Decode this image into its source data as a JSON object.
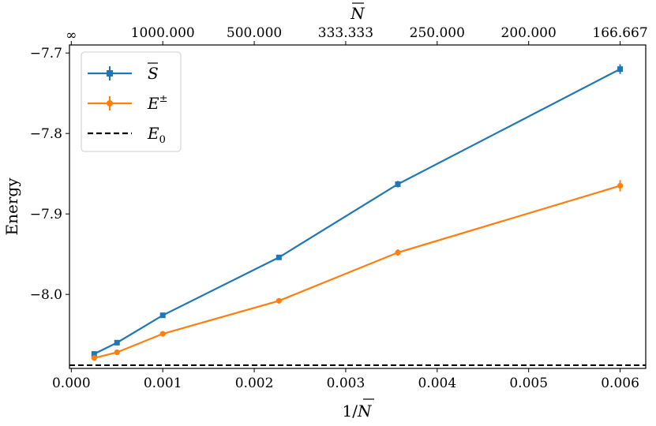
{
  "chart_data": {
    "type": "line",
    "xlabel": "1/N̄",
    "ylabel": "Energy",
    "top_xlabel": "N̄",
    "xlim": [
      -2e-05,
      0.00628
    ],
    "ylim": [
      -8.092,
      -7.69
    ],
    "x_ticks": [
      0.0,
      0.001,
      0.002,
      0.003,
      0.004,
      0.005,
      0.006
    ],
    "x_tick_labels": [
      "0.000",
      "0.001",
      "0.002",
      "0.003",
      "0.004",
      "0.005",
      "0.006"
    ],
    "y_ticks": [
      -7.7,
      -7.8,
      -7.9,
      -8.0
    ],
    "y_tick_labels": [
      "−7.7",
      "−7.8",
      "−7.9",
      "−8.0"
    ],
    "top_ticks": [
      0.0,
      0.001,
      0.002,
      0.003,
      0.004,
      0.005,
      0.006
    ],
    "top_tick_labels": [
      "∞",
      "1000.000",
      "500.000",
      "333.333",
      "250.000",
      "200.000",
      "166.667"
    ],
    "grid": false,
    "legend_position": "top-left",
    "series": [
      {
        "name": "S̄",
        "color": "#1f77b4",
        "marker": "square",
        "x": [
          0.00025,
          0.0005,
          0.001,
          0.00227,
          0.00357,
          0.006
        ],
        "y": [
          -8.074,
          -8.06,
          -8.026,
          -7.954,
          -7.863,
          -7.72
        ],
        "err": [
          0.002,
          0.002,
          0.002,
          0.002,
          0.004,
          0.006
        ]
      },
      {
        "name": "E±",
        "color": "#ff7f0e",
        "marker": "circle",
        "x": [
          0.00025,
          0.0005,
          0.001,
          0.00227,
          0.00357,
          0.006
        ],
        "y": [
          -8.079,
          -8.072,
          -8.049,
          -8.008,
          -7.948,
          -7.865
        ],
        "err": [
          0.002,
          0.002,
          0.002,
          0.002,
          0.004,
          0.007
        ]
      },
      {
        "name": "E0",
        "color": "#000000",
        "style": "dashed",
        "y_constant": -8.088
      }
    ]
  }
}
